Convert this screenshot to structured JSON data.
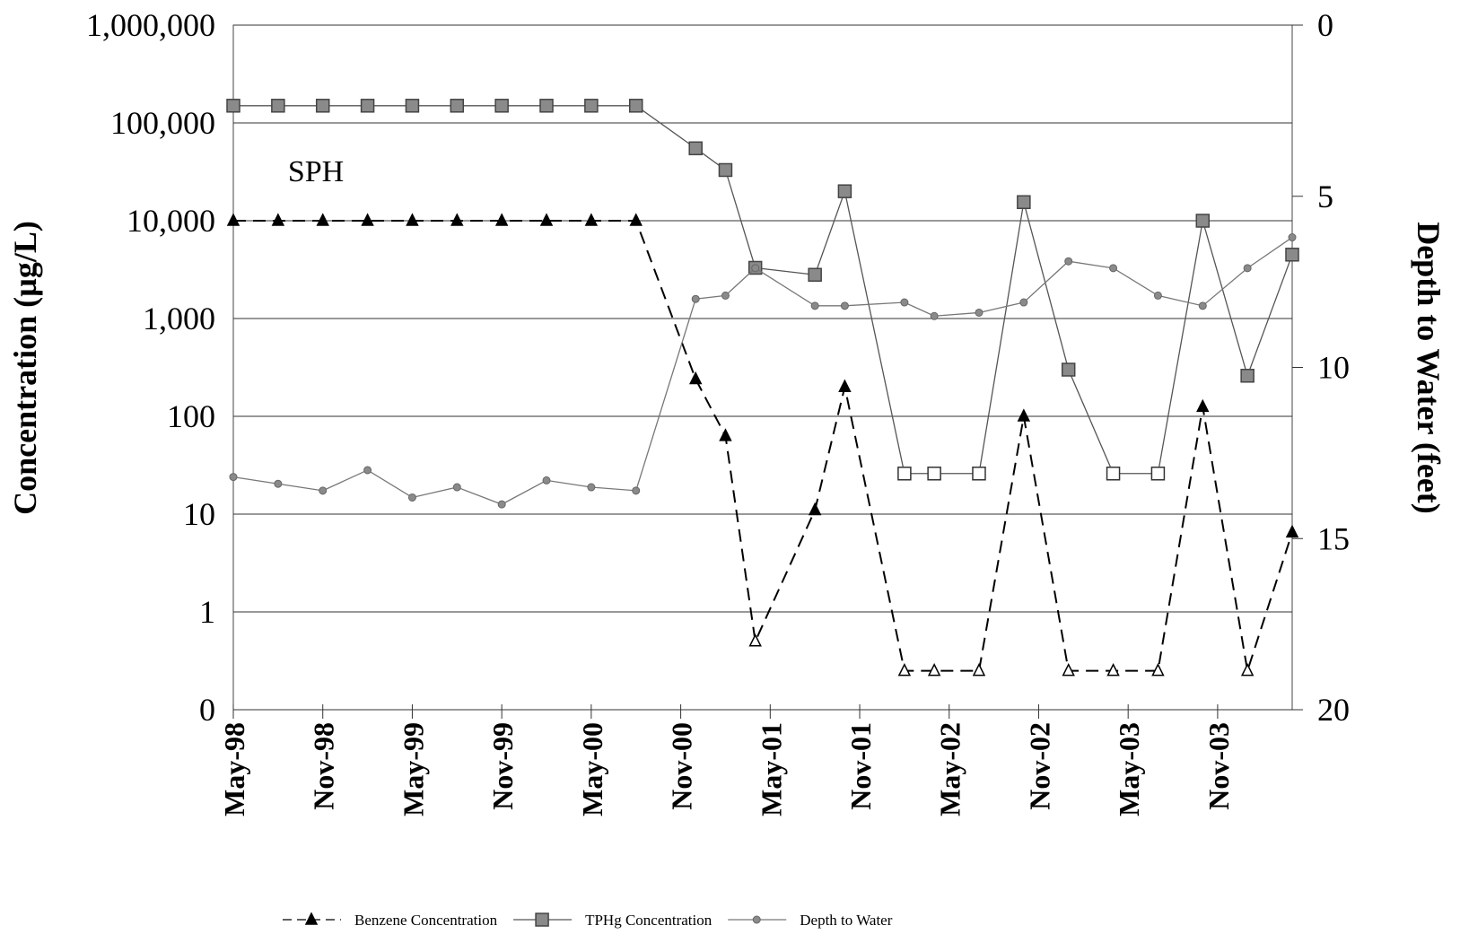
{
  "chart_data": {
    "type": "line",
    "annotations": [
      "SPH"
    ],
    "ylabel": "Concentration (µg/L)",
    "y2label": "Depth to Water (feet)",
    "x": [
      "1998-05",
      "1998-08",
      "1998-11",
      "1999-02",
      "1999-05",
      "1999-08",
      "1999-11",
      "2000-02",
      "2000-05",
      "2000-08",
      "2000-12",
      "2001-02",
      "2001-04",
      "2001-08",
      "2001-10",
      "2002-02",
      "2002-04",
      "2002-07",
      "2002-10",
      "2003-01",
      "2003-04",
      "2003-07",
      "2003-10",
      "2004-01",
      "2004-04"
    ],
    "xlim": [
      "1998-05",
      "2004-04"
    ],
    "xticks": [
      {
        "value": "1998-05",
        "label": "May-98"
      },
      {
        "value": "1998-11",
        "label": "Nov-98"
      },
      {
        "value": "1999-05",
        "label": "May-99"
      },
      {
        "value": "1999-11",
        "label": "Nov-99"
      },
      {
        "value": "2000-05",
        "label": "May-00"
      },
      {
        "value": "2000-11",
        "label": "Nov-00"
      },
      {
        "value": "2001-05",
        "label": "May-01"
      },
      {
        "value": "2001-11",
        "label": "Nov-01"
      },
      {
        "value": "2002-05",
        "label": "May-02"
      },
      {
        "value": "2002-11",
        "label": "Nov-02"
      },
      {
        "value": "2003-05",
        "label": "May-03"
      },
      {
        "value": "2003-11",
        "label": "Nov-03"
      }
    ],
    "ylim": [
      0.1,
      1000000
    ],
    "y_log": true,
    "yticks": [
      {
        "value": 0.1,
        "label": "0"
      },
      1,
      10,
      100,
      {
        "value": 1000,
        "label": "1,000"
      },
      {
        "value": 10000,
        "label": "10,000"
      },
      {
        "value": 100000,
        "label": "100,000"
      },
      {
        "value": 1000000,
        "label": "1,000,000"
      }
    ],
    "y2lim": [
      0,
      20
    ],
    "y2_inverted": true,
    "y2ticks": [
      0,
      5,
      10,
      15,
      20
    ],
    "grid": true,
    "legend": "bottom",
    "series": [
      {
        "name": "Benzene Concentration",
        "color": "#000000",
        "marker": "triangle",
        "dashed": true,
        "values": [
          10000,
          10000,
          10000,
          10000,
          10000,
          10000,
          10000,
          10000,
          10000,
          10000,
          240,
          63,
          0.5,
          11,
          200,
          0.25,
          0.25,
          0.25,
          100,
          0.25,
          0.25,
          0.25,
          125,
          0.25,
          6.5
        ],
        "hollow": [
          false,
          false,
          false,
          false,
          false,
          false,
          false,
          false,
          false,
          false,
          false,
          false,
          true,
          false,
          false,
          true,
          true,
          true,
          false,
          true,
          true,
          true,
          false,
          true,
          false
        ]
      },
      {
        "name": "TPHg Concentration",
        "color": "#555555",
        "marker_color": "#8a8a8a",
        "marker": "square",
        "dashed": false,
        "values": [
          150000,
          150000,
          150000,
          150000,
          150000,
          150000,
          150000,
          150000,
          150000,
          150000,
          55000,
          33000,
          3300,
          2800,
          20000,
          26,
          26,
          26,
          15500,
          300,
          26,
          26,
          10000,
          260,
          4500
        ],
        "hollow": [
          false,
          false,
          false,
          false,
          false,
          false,
          false,
          false,
          false,
          false,
          false,
          false,
          false,
          false,
          false,
          true,
          true,
          true,
          false,
          false,
          true,
          true,
          false,
          false,
          false
        ]
      },
      {
        "name": "Depth to Water",
        "color": "#777777",
        "marker_color": "#8a8a8a",
        "marker": "circle",
        "dashed": false,
        "axis": "y2",
        "values": [
          13.2,
          13.4,
          13.6,
          13.0,
          13.8,
          13.5,
          14.0,
          13.3,
          13.5,
          13.6,
          8.0,
          7.9,
          7.1,
          8.2,
          8.2,
          8.1,
          8.5,
          8.4,
          8.1,
          6.9,
          7.1,
          7.9,
          8.2,
          7.1,
          6.2
        ]
      }
    ]
  }
}
